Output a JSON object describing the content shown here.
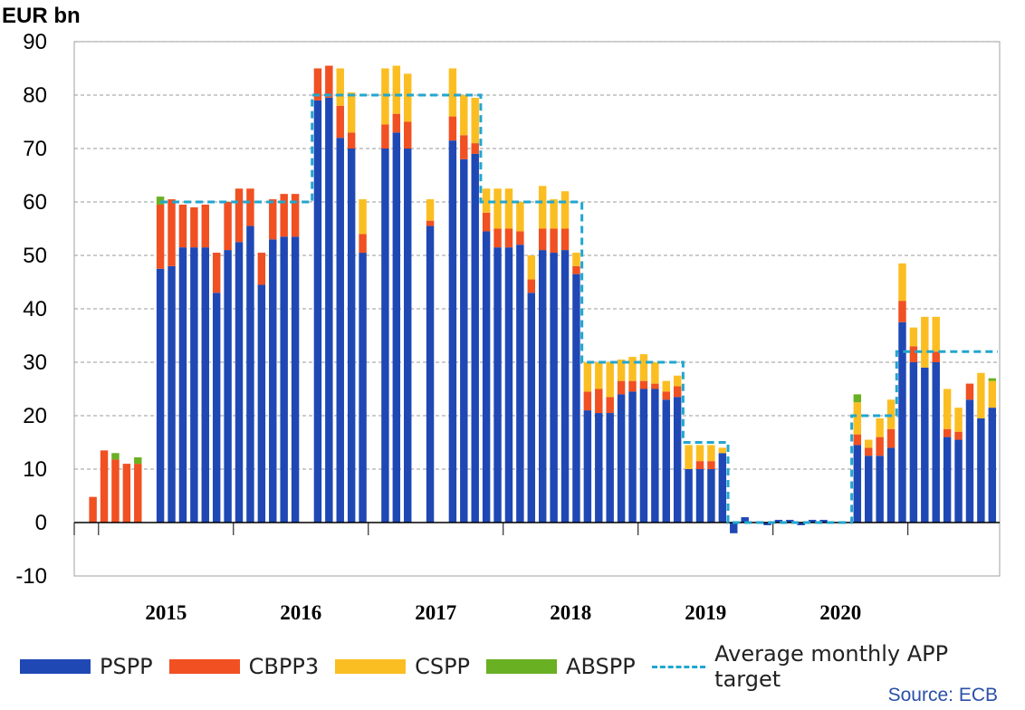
{
  "chart_data": {
    "type": "bar",
    "stacked": true,
    "ylabel": "EUR bn",
    "ylim": [
      -10,
      90
    ],
    "yticks": [
      -10,
      0,
      10,
      20,
      30,
      40,
      50,
      60,
      70,
      80,
      90
    ],
    "grid": true,
    "legend_position": "bottom",
    "x_start": "2014-11",
    "year_labels": [
      "2015",
      "2016",
      "2017",
      "2018",
      "2019",
      "2020"
    ],
    "series": [
      {
        "name": "PSPP",
        "color": "#1f48b4",
        "values": [
          0,
          0,
          0,
          0,
          0,
          0,
          0,
          47.5,
          48,
          51.5,
          51.5,
          51.5,
          43,
          51,
          52.5,
          55.5,
          44.5,
          53,
          53.5,
          53.5,
          0,
          79,
          79.5,
          72,
          70,
          50.5,
          0,
          70,
          73,
          70,
          0,
          55.5,
          0,
          71.5,
          68,
          69,
          54.5,
          51.5,
          51.5,
          52,
          43,
          51,
          50.5,
          51,
          46.5,
          21,
          20.5,
          20.5,
          24,
          24.5,
          25,
          25,
          23,
          23.5,
          10,
          10,
          10,
          13,
          -2,
          1,
          0,
          -0.5,
          0.5,
          0.5,
          -0.5,
          0.5,
          0.5,
          0,
          0,
          14.5,
          12.5,
          12.5,
          14,
          37.5,
          30,
          29,
          30,
          16,
          15.5,
          23,
          19.5,
          21.5
        ]
      },
      {
        "name": "CBPP3",
        "color": "#f05022",
        "values": [
          0,
          4.8,
          13.5,
          11.8,
          11,
          11,
          0,
          12,
          12.5,
          8,
          7.5,
          8,
          7.5,
          9,
          10,
          7,
          6,
          7.5,
          8,
          8,
          0,
          6,
          6,
          6,
          3,
          3.5,
          0,
          4.5,
          3.5,
          5,
          0,
          1,
          0,
          4.5,
          4.5,
          2,
          3.5,
          3.5,
          3.5,
          2.5,
          2.5,
          4,
          4.5,
          4,
          1.5,
          3.5,
          4.5,
          3,
          2.5,
          2,
          1.5,
          1,
          1.5,
          2,
          0,
          1.5,
          1.5,
          0,
          0,
          0,
          0,
          0,
          0,
          0,
          0,
          0,
          0,
          0,
          0,
          2,
          1.5,
          3.5,
          3.5,
          4,
          3,
          0,
          2,
          1.5,
          1.5,
          3,
          0,
          0
        ]
      },
      {
        "name": "CSPP",
        "color": "#fbbe22",
        "values": [
          0,
          0,
          0,
          0,
          0,
          0,
          0,
          0,
          0,
          0,
          0,
          0,
          0,
          0,
          0,
          0,
          0,
          0,
          0,
          0,
          0,
          0,
          0,
          7,
          7.5,
          6.5,
          0,
          10.5,
          9,
          9,
          0,
          4,
          0,
          9,
          7.5,
          8.5,
          4.5,
          7.5,
          7.5,
          5.5,
          4.5,
          8,
          5.5,
          7,
          2.5,
          5.5,
          5,
          6.5,
          4,
          4.5,
          5,
          4,
          2,
          2,
          4.5,
          3,
          3,
          1,
          0,
          0,
          0,
          0,
          0,
          0,
          0,
          0,
          0,
          0,
          0,
          6,
          1.5,
          3.5,
          5.5,
          7,
          3.5,
          9.5,
          6.5,
          7.5,
          4.5,
          0,
          8.5,
          5
        ]
      },
      {
        "name": "ABSPP",
        "color": "#6ab023",
        "values": [
          0,
          0,
          0,
          1.2,
          0,
          1.2,
          0,
          1.5,
          0,
          0,
          0,
          0,
          0,
          0,
          0,
          0,
          0,
          0,
          0,
          0,
          0,
          0,
          0,
          0,
          0,
          0,
          0,
          0,
          0,
          0,
          0,
          0,
          0,
          0,
          0,
          0,
          0,
          0,
          0,
          0,
          0,
          0,
          0,
          0,
          0,
          0,
          0,
          0,
          0,
          0,
          0,
          0,
          0,
          0,
          0,
          0,
          0,
          0,
          0,
          0,
          0,
          0,
          0,
          0,
          0,
          0,
          0,
          0,
          0,
          1.5,
          0,
          0,
          0,
          0,
          0,
          0,
          0,
          0,
          0,
          0,
          0,
          0.5
        ]
      },
      {
        "name": "Average monthly APP target",
        "type": "line",
        "color": "#22a6cf",
        "style": "dashed",
        "values": [
          null,
          null,
          null,
          null,
          null,
          null,
          null,
          60,
          60,
          60,
          60,
          60,
          60,
          60,
          60,
          60,
          60,
          60,
          60,
          60,
          60,
          80,
          80,
          80,
          80,
          80,
          80,
          80,
          80,
          80,
          80,
          80,
          80,
          80,
          80,
          80,
          60,
          60,
          60,
          60,
          60,
          60,
          60,
          60,
          60,
          30,
          30,
          30,
          30,
          30,
          30,
          30,
          30,
          30,
          15,
          15,
          15,
          15,
          0,
          0,
          0,
          0,
          0,
          0,
          0,
          0,
          0,
          0,
          0,
          20,
          20,
          20,
          20,
          32,
          32,
          32,
          32,
          32,
          32,
          32,
          32,
          32
        ]
      }
    ]
  },
  "legend": {
    "pspp": "PSPP",
    "cbpp3": "CBPP3",
    "cspp": "CSPP",
    "abspp": "ABSPP",
    "target": "Average monthly APP target"
  },
  "source": "Source: ECB"
}
